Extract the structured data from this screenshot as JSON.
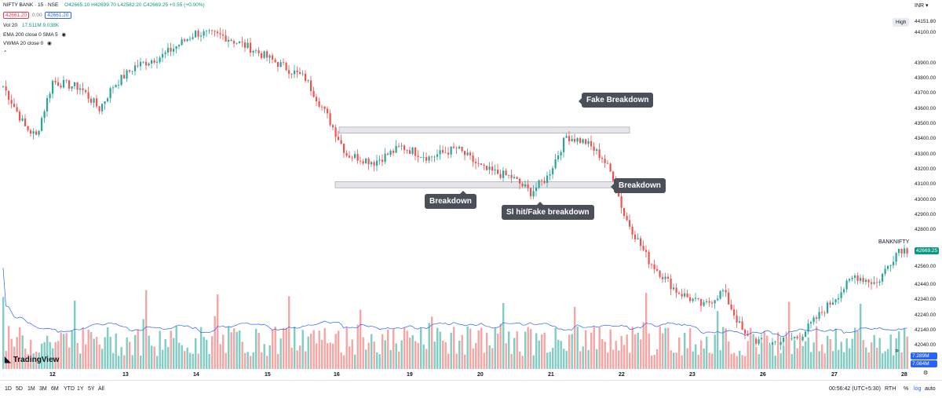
{
  "header": {
    "symbol": "NIFTY BANK · 15 · NSE",
    "ohlc": "O42665.10 H42699.70 L42582.20 C42669.25 +0.55 (+0.00%)",
    "bid": "42661.20",
    "spread": "0.00",
    "ask": "42661.20",
    "currency": "INR",
    "indicators": [
      {
        "label": "Vol 20",
        "value": "17.511M 9.038K"
      },
      {
        "label": "EMA 200 close 0 SMA 5",
        "value": ""
      },
      {
        "label": "VWMA 20 close 0",
        "value": ""
      }
    ]
  },
  "price_scale": {
    "labels": [
      "44100.00",
      "43900.00",
      "43800.00",
      "43700.00",
      "43600.00",
      "43500.00",
      "43400.00",
      "43300.00",
      "43200.00",
      "43100.00",
      "43000.00",
      "42900.00",
      "42800.00",
      "42669.25",
      "42560.00",
      "42440.00",
      "42340.00",
      "42240.00",
      "42140.00",
      "42040.00"
    ],
    "high_label": "High",
    "high_value": "44151.80",
    "current_value": "42669.25",
    "vol_ma_value": "7.289M",
    "vol_value": "7.084M",
    "symbol_tag": "BANKNIFTY"
  },
  "time_axis": [
    "12",
    "13",
    "14",
    "15",
    "16",
    "19",
    "20",
    "21",
    "22",
    "23",
    "26",
    "27",
    "28"
  ],
  "annotations": {
    "fake_breakdown_top": "Fake Breakdown",
    "breakdown_left": "Breakdown",
    "sl_hit": "Sl hit/Fake breakdown",
    "breakdown_right": "Breakdown"
  },
  "brand": "TradingView",
  "bottom_bar": {
    "ranges": [
      "1D",
      "5D",
      "1M",
      "3M",
      "6M",
      "YTD",
      "1Y",
      "5Y",
      "All"
    ],
    "time": "00:56:42 (UTC+5:30)",
    "session": "RTH",
    "percent": "%",
    "log": "log",
    "auto": "auto"
  },
  "colors": {
    "up": "#26a69a",
    "down": "#ef5350",
    "vol_up": "#7fcec4",
    "vol_down": "#f5a5a3",
    "ma": "#2962ff",
    "box": "#e6e6ea"
  },
  "chart_data": {
    "type": "candlestick",
    "y_range": [
      42000,
      44151.8
    ],
    "waypoints": [
      {
        "t": 0,
        "price": 43750
      },
      {
        "t": 8,
        "price": 43480
      },
      {
        "t": 12,
        "price": 43420
      },
      {
        "t": 18,
        "price": 43780
      },
      {
        "t": 28,
        "price": 43740
      },
      {
        "t": 35,
        "price": 43600
      },
      {
        "t": 40,
        "price": 43750
      },
      {
        "t": 48,
        "price": 43880
      },
      {
        "t": 58,
        "price": 43950
      },
      {
        "t": 70,
        "price": 44100
      },
      {
        "t": 80,
        "price": 44080
      },
      {
        "t": 90,
        "price": 44000
      },
      {
        "t": 100,
        "price": 43900
      },
      {
        "t": 110,
        "price": 43800
      },
      {
        "t": 118,
        "price": 43550
      },
      {
        "t": 125,
        "price": 43300
      },
      {
        "t": 135,
        "price": 43250
      },
      {
        "t": 145,
        "price": 43350
      },
      {
        "t": 155,
        "price": 43280
      },
      {
        "t": 165,
        "price": 43340
      },
      {
        "t": 175,
        "price": 43200
      },
      {
        "t": 185,
        "price": 43150
      },
      {
        "t": 192,
        "price": 43050
      },
      {
        "t": 198,
        "price": 43150
      },
      {
        "t": 205,
        "price": 43420
      },
      {
        "t": 212,
        "price": 43380
      },
      {
        "t": 218,
        "price": 43280
      },
      {
        "t": 222,
        "price": 43150
      },
      {
        "t": 226,
        "price": 42900
      },
      {
        "t": 235,
        "price": 42600
      },
      {
        "t": 245,
        "price": 42400
      },
      {
        "t": 255,
        "price": 42300
      },
      {
        "t": 262,
        "price": 42400
      },
      {
        "t": 270,
        "price": 42100
      },
      {
        "t": 278,
        "price": 42050
      },
      {
        "t": 290,
        "price": 42100
      },
      {
        "t": 300,
        "price": 42300
      },
      {
        "t": 310,
        "price": 42500
      },
      {
        "t": 318,
        "price": 42450
      },
      {
        "t": 326,
        "price": 42680
      }
    ],
    "levels": [
      {
        "label": "resistance band",
        "low": 43440,
        "high": 43480
      },
      {
        "label": "support band",
        "low": 43080,
        "high": 43120
      }
    ]
  }
}
